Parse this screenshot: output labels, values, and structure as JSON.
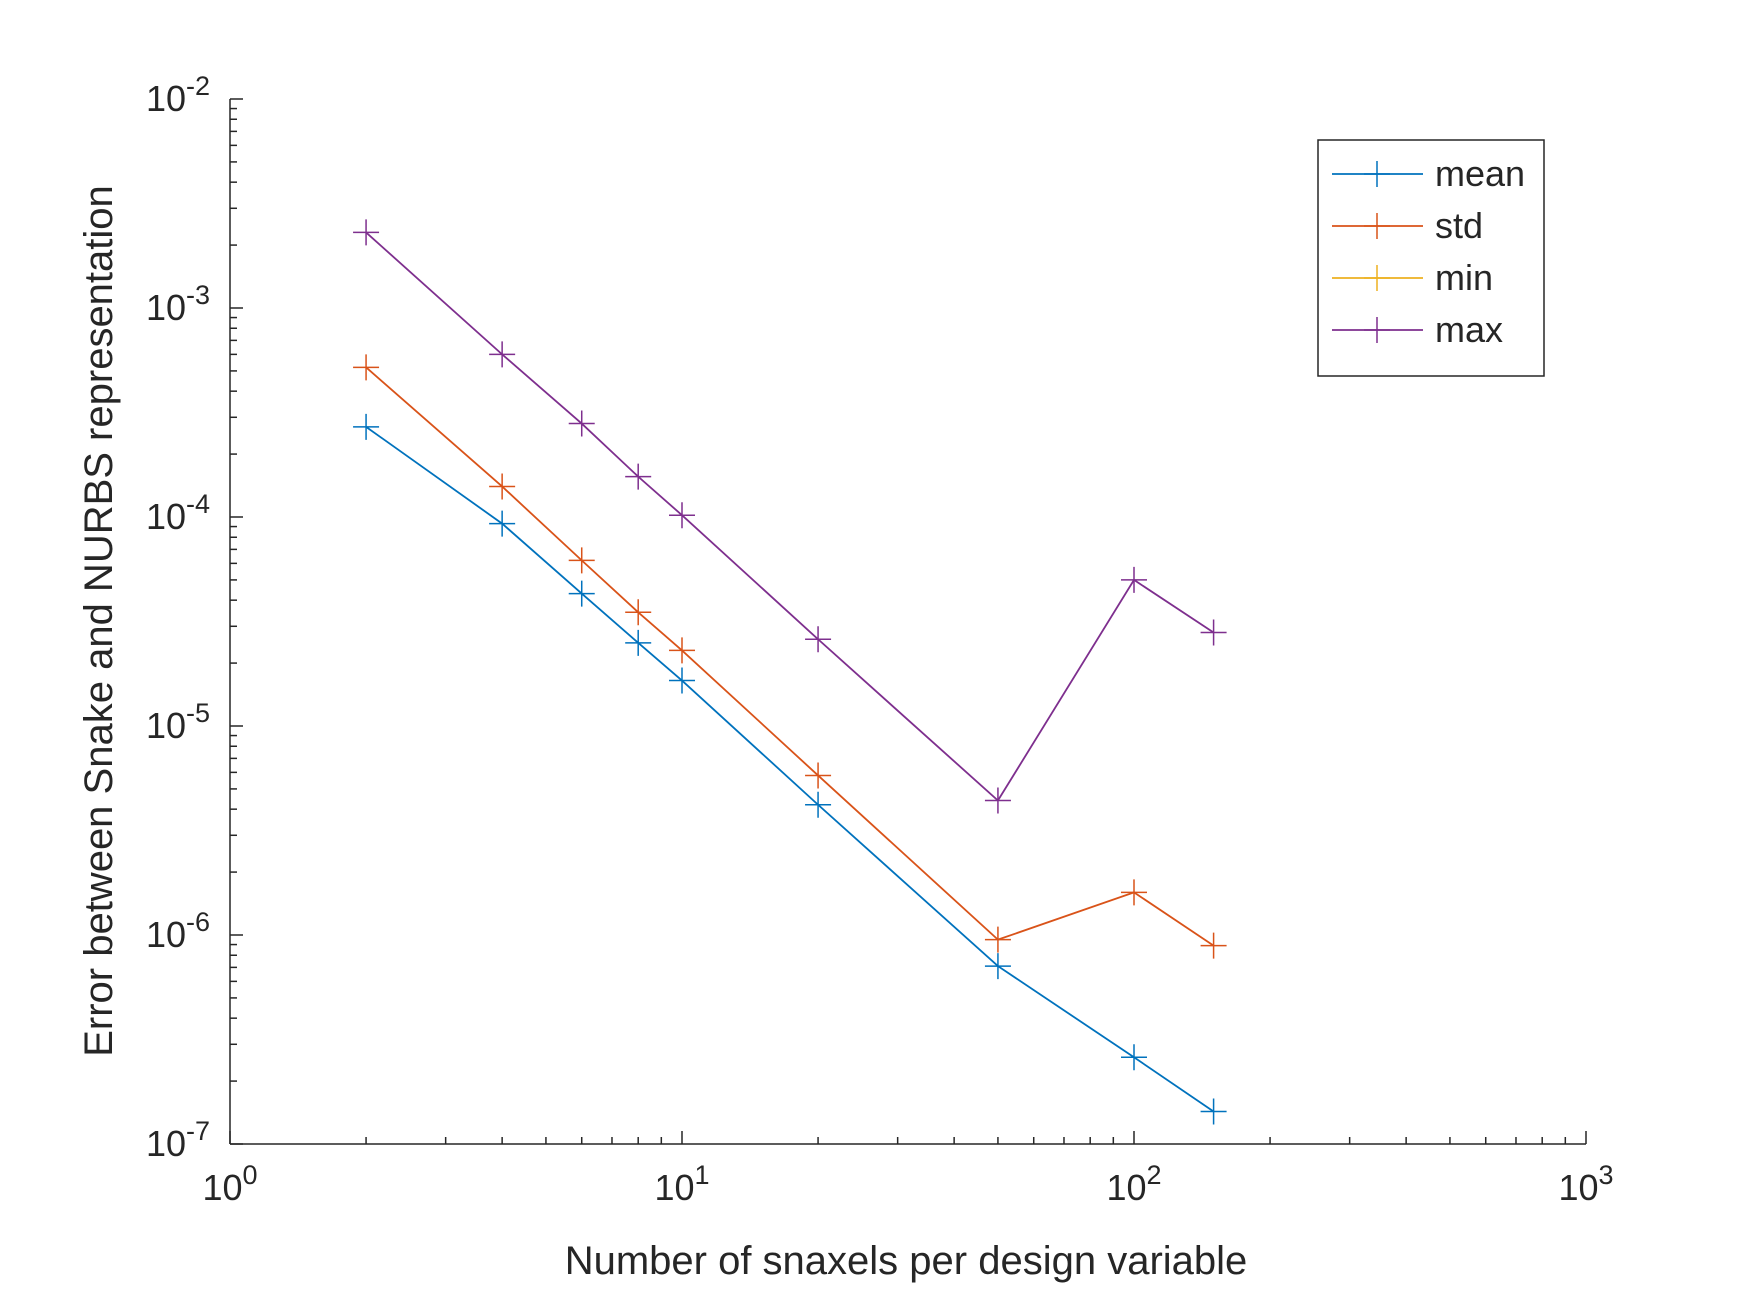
{
  "chart_data": {
    "type": "line",
    "xlabel": "Number of snaxels per design variable",
    "ylabel": "Error between Snake and NURBS representation",
    "x": [
      2,
      4,
      6,
      8,
      10,
      20,
      50,
      100,
      150
    ],
    "series": [
      {
        "name": "mean",
        "color": "#0072BD",
        "values": [
          0.00027,
          9.3e-05,
          4.3e-05,
          2.5e-05,
          1.65e-05,
          4.2e-06,
          7.1e-07,
          2.6e-07,
          1.43e-07
        ]
      },
      {
        "name": "std",
        "color": "#D95319",
        "values": [
          0.00052,
          0.00014,
          6.2e-05,
          3.5e-05,
          2.3e-05,
          5.8e-06,
          9.5e-07,
          1.6e-06,
          8.9e-07
        ]
      },
      {
        "name": "min",
        "color": "#EDB120",
        "values": [
          null,
          null,
          null,
          null,
          null,
          null,
          null,
          null,
          null
        ]
      },
      {
        "name": "max",
        "color": "#7E2F8E",
        "values": [
          0.0023,
          0.0006,
          0.00028,
          0.000156,
          0.000102,
          2.6e-05,
          4.4e-06,
          5e-05,
          2.8e-05
        ]
      }
    ],
    "xscale": "log",
    "yscale": "log",
    "xlim": [
      1,
      1000
    ],
    "ylim": [
      1e-07,
      0.01
    ],
    "xticks": [
      {
        "value": 1,
        "label": "10^0"
      },
      {
        "value": 10,
        "label": "10^1"
      },
      {
        "value": 100,
        "label": "10^2"
      },
      {
        "value": 1000,
        "label": "10^3"
      }
    ],
    "yticks": [
      {
        "value": 1e-07,
        "label": "10^-7"
      },
      {
        "value": 1e-06,
        "label": "10^-6"
      },
      {
        "value": 1e-05,
        "label": "10^-5"
      },
      {
        "value": 0.0001,
        "label": "10^-4"
      },
      {
        "value": 0.001,
        "label": "10^-3"
      },
      {
        "value": 0.01,
        "label": "10^-2"
      }
    ],
    "xminorticks": [
      2,
      3,
      4,
      5,
      6,
      7,
      8,
      9,
      20,
      30,
      40,
      50,
      60,
      70,
      80,
      90,
      200,
      300,
      400,
      500,
      600,
      700,
      800,
      900
    ],
    "yminorticks": [
      2e-07,
      3e-07,
      4e-07,
      5e-07,
      6e-07,
      7e-07,
      8e-07,
      9e-07,
      2e-06,
      3e-06,
      4e-06,
      5e-06,
      6e-06,
      7e-06,
      8e-06,
      9e-06,
      2e-05,
      3e-05,
      4e-05,
      5e-05,
      6e-05,
      7e-05,
      8e-05,
      9e-05,
      0.0002,
      0.0003,
      0.0004,
      0.0005,
      0.0006,
      0.0007,
      0.0008,
      0.0009,
      0.002,
      0.003,
      0.004,
      0.005,
      0.006,
      0.007,
      0.008,
      0.009
    ],
    "marker": "+",
    "legend": "top-right"
  }
}
